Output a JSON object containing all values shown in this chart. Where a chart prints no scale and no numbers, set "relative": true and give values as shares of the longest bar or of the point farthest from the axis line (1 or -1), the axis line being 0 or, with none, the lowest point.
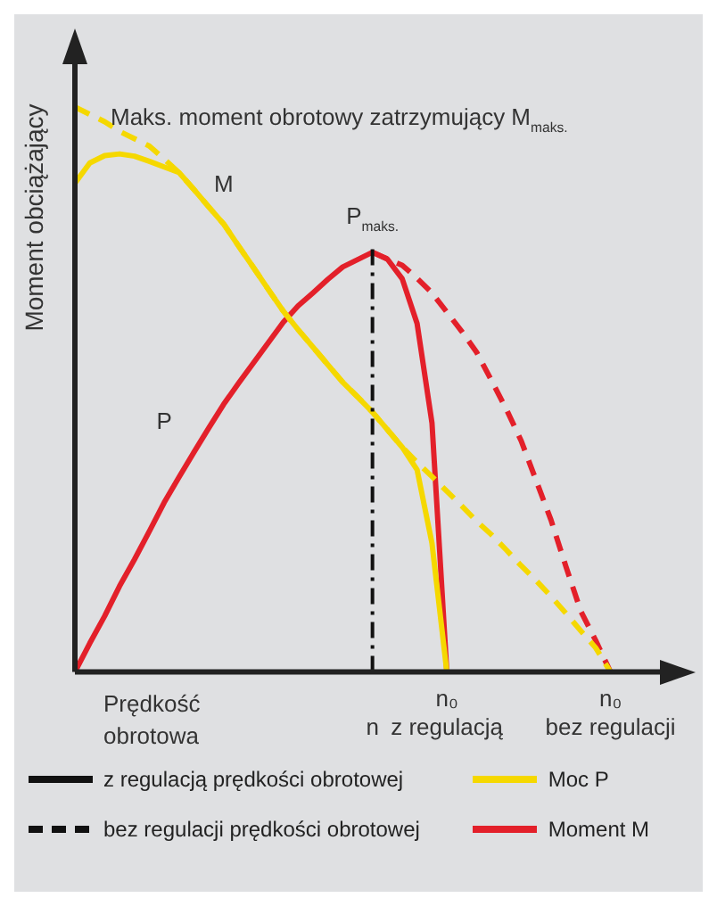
{
  "chart_data": {
    "type": "line",
    "relative": true,
    "title": "Maks. moment obrotowy zatrzymujący M$_{maks.}$",
    "ylabel": "Moment obciążający",
    "xlabel": "Prędkość obrotowa",
    "categories": [
      null,
      null,
      null,
      null,
      null,
      null,
      null,
      null,
      null,
      null,
      null,
      null,
      null,
      null,
      null,
      null,
      null,
      null,
      null,
      null,
      "n",
      null,
      null,
      null,
      null,
      "n₀ z regulacją",
      null,
      null,
      null,
      null,
      null,
      null,
      null,
      null,
      null,
      null,
      "n₀ bez regulacji",
      null,
      null,
      null,
      null,
      null
    ],
    "grid": false,
    "legend": "bottom",
    "series": [
      {
        "name": "Moc P",
        "color": "#f5d800",
        "line_style": "solid",
        "values": [
          0.865,
          0.901,
          0.914,
          0.917,
          0.913,
          0.904,
          0.894,
          0.884,
          0.854,
          0.823,
          0.793,
          0.754,
          0.716,
          0.677,
          0.639,
          0.606,
          0.575,
          0.544,
          0.513,
          0.487,
          0.46,
          0.429,
          0.398,
          0.358,
          0.228,
          0,
          null,
          null,
          null,
          null,
          null,
          null,
          null,
          null,
          null,
          null,
          null,
          null,
          null,
          null,
          null,
          null
        ]
      },
      {
        "color": "#f5d800",
        "line_style": "dashed",
        "values": [
          1,
          0.987,
          0.974,
          0.957,
          0.944,
          0.931,
          0.908,
          0.884,
          0.854,
          0.823,
          0.793,
          0.754,
          0.716,
          0.677,
          0.639,
          0.606,
          0.575,
          0.544,
          0.513,
          0.487,
          0.46,
          0.429,
          0.398,
          0.371,
          0.346,
          0.32,
          0.294,
          0.267,
          0.243,
          0.216,
          0.188,
          0.162,
          0.134,
          0.104,
          0.073,
          0.043,
          0,
          null,
          null,
          null,
          null,
          null
        ]
      },
      {
        "name": "Moment M",
        "color": "#e3202a",
        "line_style": "solid",
        "values": [
          0,
          0.051,
          0.099,
          0.152,
          0.199,
          0.249,
          0.3,
          0.345,
          0.389,
          0.432,
          0.474,
          0.511,
          0.547,
          0.583,
          0.619,
          0.648,
          0.671,
          0.695,
          0.717,
          0.73,
          0.743,
          0.731,
          0.696,
          0.617,
          0.441,
          0,
          null,
          null,
          null,
          null,
          null,
          null,
          null,
          null,
          null,
          null,
          null,
          null,
          null,
          null,
          null,
          null
        ]
      },
      {
        "color": "#e3202a",
        "line_style": "dashed",
        "values": [
          null,
          null,
          null,
          null,
          null,
          null,
          null,
          null,
          null,
          null,
          null,
          null,
          null,
          null,
          null,
          null,
          null,
          null,
          null,
          null,
          0.743,
          0.731,
          0.72,
          0.697,
          0.671,
          0.637,
          0.603,
          0.566,
          0.516,
          0.465,
          0.409,
          0.339,
          0.269,
          0.187,
          0.108,
          0.056,
          0,
          null,
          null,
          null,
          null,
          null
        ]
      }
    ],
    "ref_lines": [
      {
        "axis": "x",
        "value": "n",
        "color": "#111111"
      }
    ],
    "annotations": [
      {
        "text": "P$_{maks.}$",
        "x": "n",
        "y": 0.743
      },
      "M",
      "P",
      "z regulacją prędkości obrotowej",
      "bez regulacji prędkości obrotowej"
    ]
  }
}
